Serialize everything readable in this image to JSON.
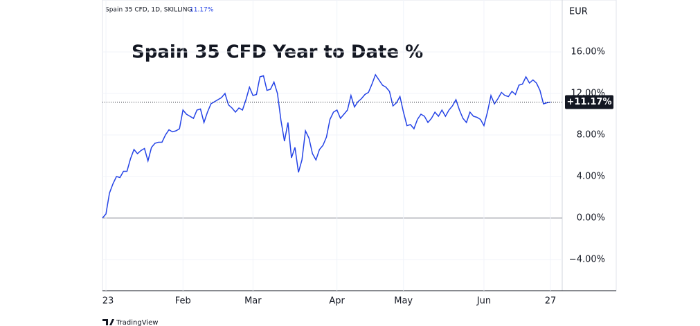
{
  "chart_data": {
    "type": "line",
    "header": "Spain 35 CFD, 1D, SKILLING",
    "header_value": "11.17%",
    "title": "Spain 35 CFD Year to Date %",
    "currency": "EUR",
    "last_label": "+11.17%",
    "brand": "TradingView",
    "series": [
      {
        "name": "Spain 35 CFD",
        "color": "#2443e6",
        "values": [
          0,
          0.4,
          2.4,
          3.3,
          4.0,
          3.9,
          4.5,
          4.5,
          5.7,
          6.6,
          6.2,
          6.5,
          6.7,
          5.5,
          6.8,
          7.2,
          7.3,
          7.3,
          8.0,
          8.5,
          8.3,
          8.4,
          8.6,
          10.4,
          10.0,
          9.8,
          9.6,
          10.4,
          10.5,
          9.2,
          10.2,
          11.0,
          11.2,
          11.4,
          11.6,
          12.0,
          10.9,
          10.6,
          10.2,
          10.6,
          10.4,
          11.4,
          12.6,
          11.8,
          11.9,
          13.6,
          13.7,
          12.3,
          12.4,
          13.1,
          12.0,
          9.4,
          7.4,
          9.2,
          5.8,
          6.8,
          4.4,
          5.6,
          8.4,
          7.7,
          6.2,
          5.6,
          6.6,
          7.0,
          7.8,
          9.5,
          10.2,
          10.4,
          9.6,
          10.0,
          10.4,
          11.8,
          10.7,
          11.2,
          11.5,
          11.9,
          12.1,
          12.9,
          13.8,
          13.3,
          12.8,
          12.6,
          12.2,
          10.8,
          11.1,
          11.7,
          10.2,
          8.9,
          9.0,
          8.6,
          9.5,
          10.0,
          9.8,
          9.2,
          9.6,
          10.2,
          9.8,
          10.4,
          9.8,
          10.4,
          10.8,
          11.4,
          10.4,
          9.6,
          9.2,
          10.2,
          9.8,
          9.7,
          9.5,
          8.9,
          10.2,
          11.8,
          11.0,
          11.5,
          12.1,
          11.8,
          11.7,
          12.2,
          11.9,
          12.8,
          12.9,
          13.6,
          13.0,
          13.3,
          13.0,
          12.3,
          11.0,
          11.1,
          11.17
        ]
      }
    ],
    "xlim": [
      0,
      128
    ],
    "xticks": [
      {
        "value": 1,
        "label": "23"
      },
      {
        "value": 23,
        "label": "Feb"
      },
      {
        "value": 43,
        "label": "Mar"
      },
      {
        "value": 67,
        "label": "Apr"
      },
      {
        "value": 86,
        "label": "May"
      },
      {
        "value": 109,
        "label": "Jun"
      },
      {
        "value": 128,
        "label": "27"
      }
    ],
    "ylim": [
      -7,
      21
    ],
    "yticks": [
      {
        "value": -4,
        "label": "−4.00%"
      },
      {
        "value": 0,
        "label": "0.00%"
      },
      {
        "value": 4,
        "label": "4.00%"
      },
      {
        "value": 8,
        "label": "8.00%"
      },
      {
        "value": 12,
        "label": "12.00%"
      },
      {
        "value": 16,
        "label": "16.00%"
      }
    ],
    "grid": true
  }
}
